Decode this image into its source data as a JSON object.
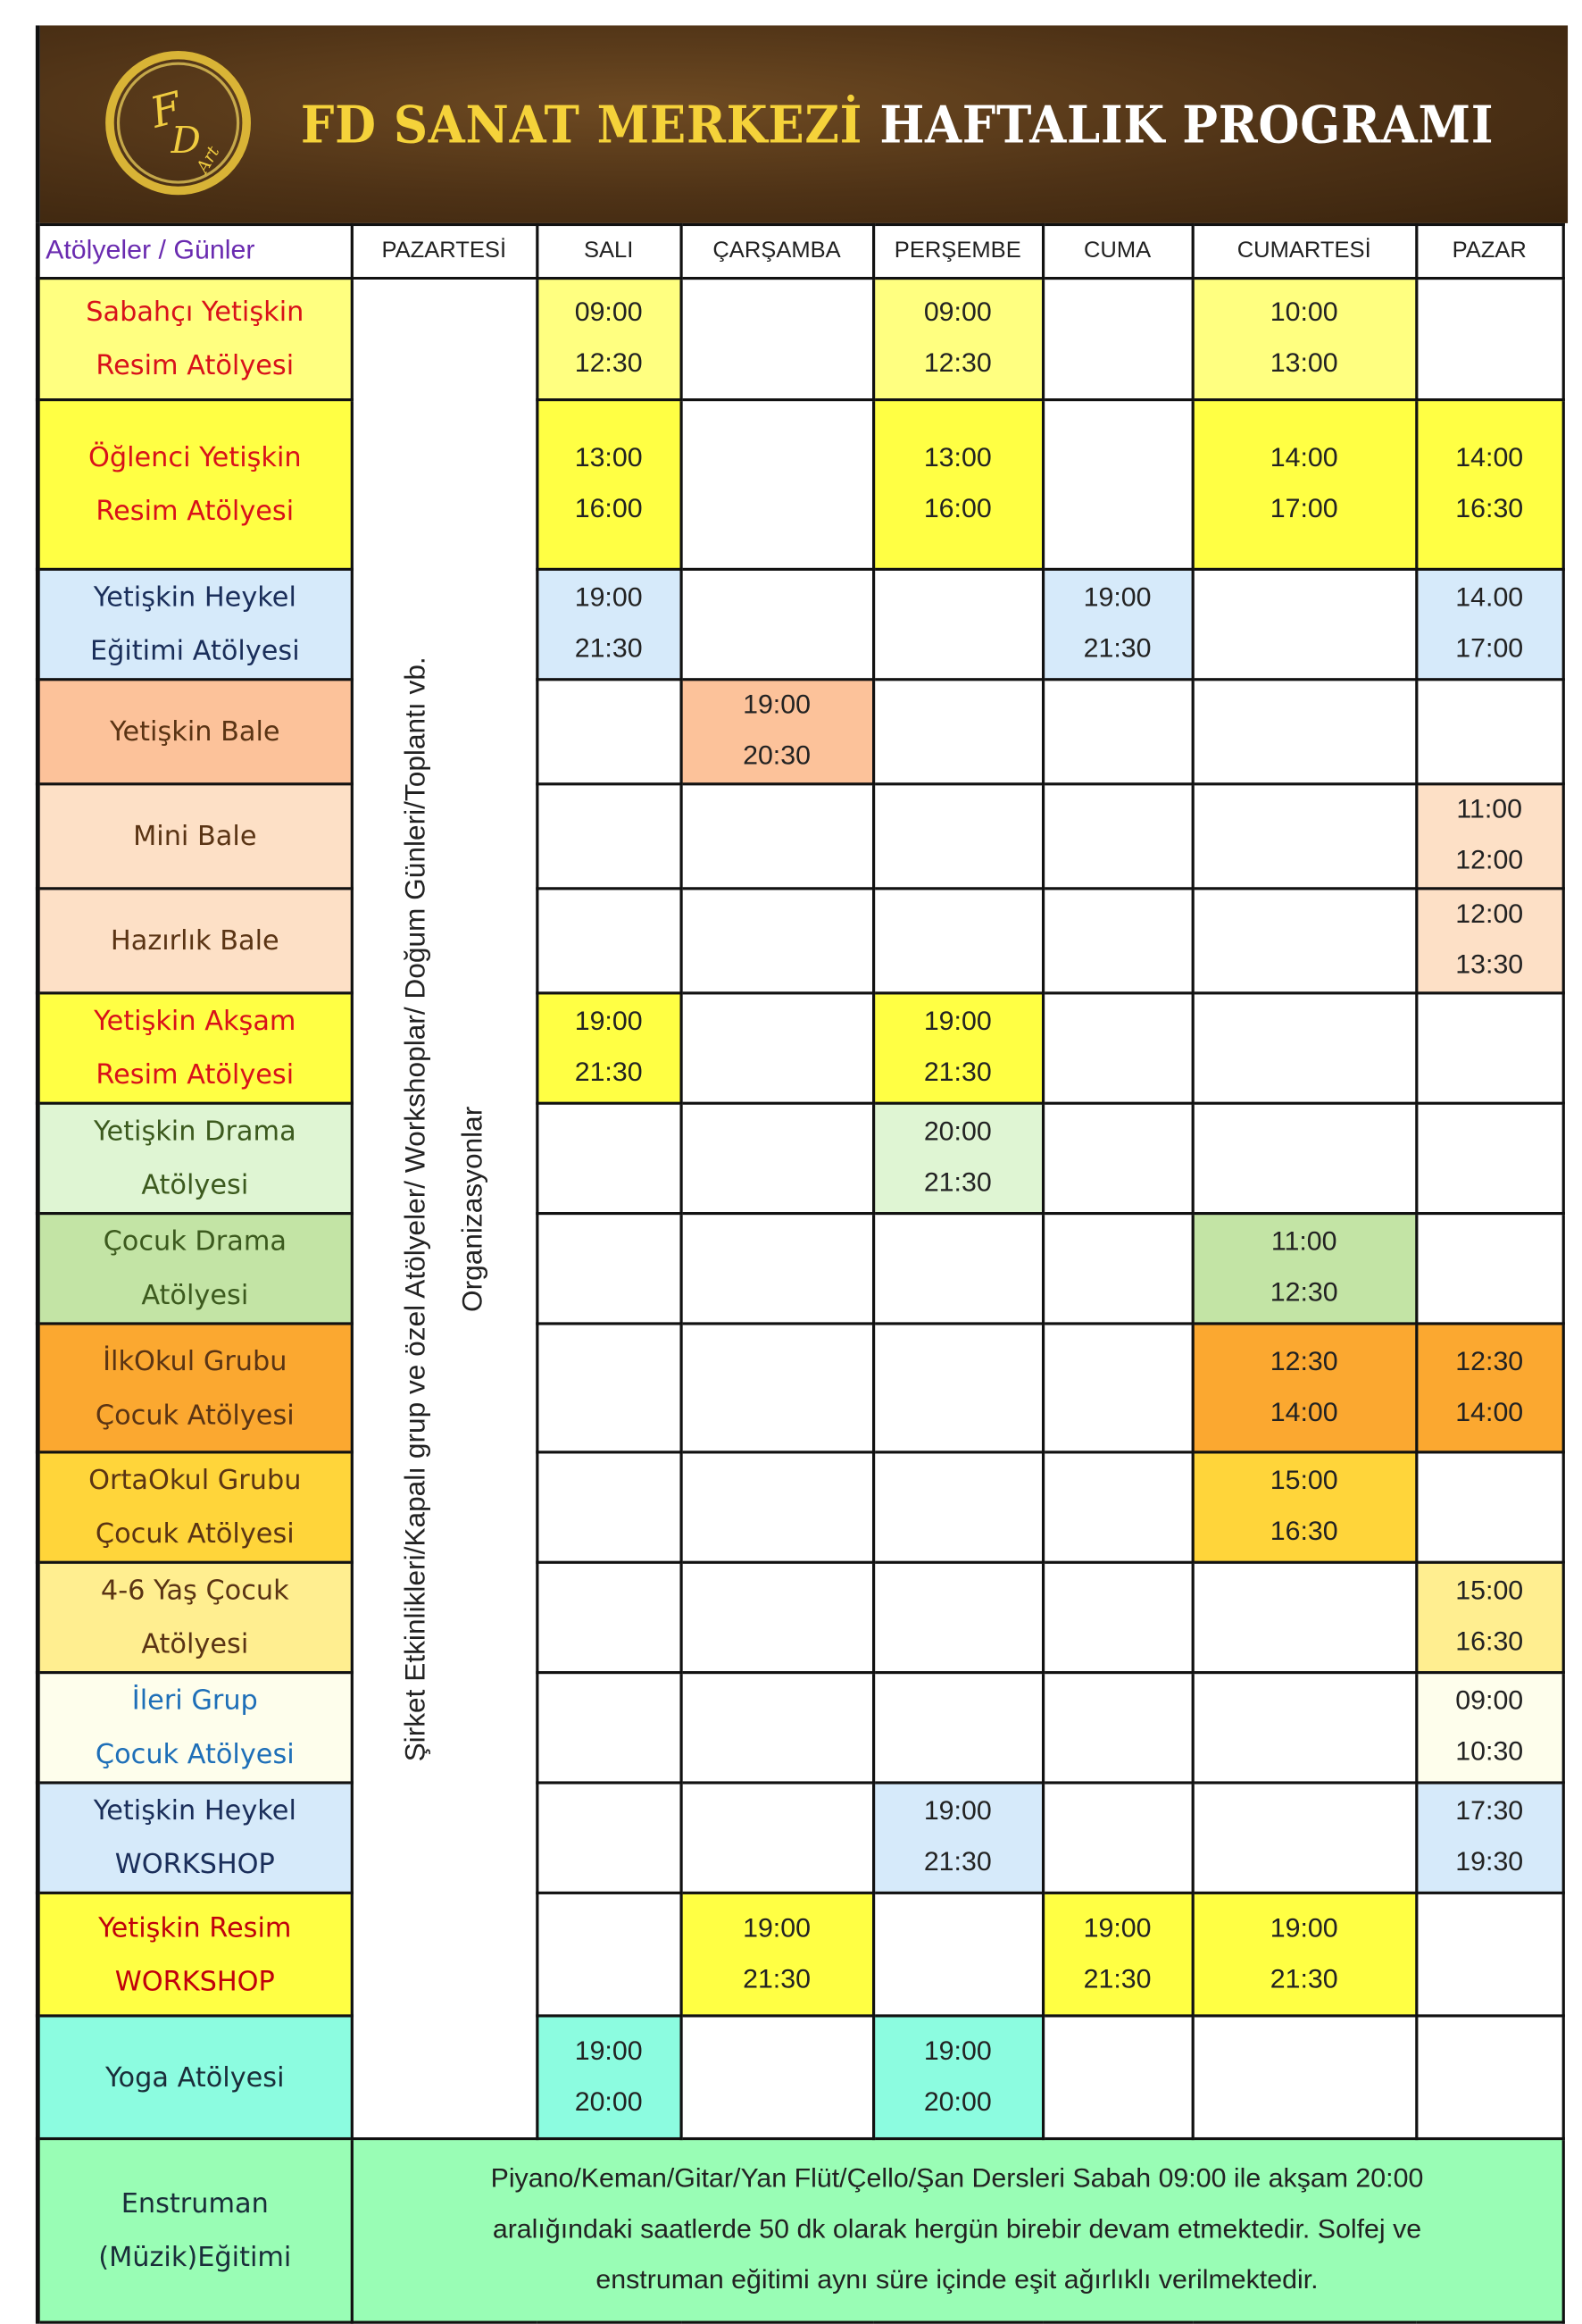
{
  "header": {
    "title_part1": "FD SANAT MERKEZİ",
    "title_part2": "HAFTALIK PROGRAMI",
    "logo_text": "FD Art"
  },
  "table": {
    "corner_label": "Atölyeler  / Günler",
    "days": [
      "PAZARTESİ",
      "SALI",
      "ÇARŞAMBA",
      "PERŞEMBE",
      "CUMA",
      "CUMARTESİ",
      "PAZAR"
    ],
    "monday_note_line1": "Şirket Etkinlikleri/Kapalı grup ve özel Atölyeler/ Workshoplar/ Doğum Günleri/Toplantı vb.",
    "monday_note_line2": "Organizasyonlar",
    "rows": [
      {
        "label1": "Sabahçı Yetişkin",
        "label2": "Resim Atölyesi",
        "color": "#d8111a",
        "bg": "#ffff80",
        "slots": [
          {
            "start": "09:00",
            "end": "12:30"
          },
          null,
          {
            "start": "09:00",
            "end": "12:30"
          },
          null,
          {
            "start": "10:00",
            "end": "13:00"
          },
          null
        ]
      },
      {
        "label1": "Öğlenci Yetişkin",
        "label2": "Resim Atölyesi",
        "color": "#d8111a",
        "bg": "#ffff44",
        "slots": [
          {
            "start": "13:00",
            "end": "16:00"
          },
          null,
          {
            "start": "13:00",
            "end": "16:00"
          },
          null,
          {
            "start": "14:00",
            "end": "17:00"
          },
          {
            "start": "14:00",
            "end": "16:30"
          }
        ]
      },
      {
        "label1": "Yetişkin Heykel",
        "label2": "Eğitimi Atölyesi",
        "color": "#1a2e5a",
        "bg": "#d6eafa",
        "slots": [
          {
            "start": "19:00",
            "end": "21:30"
          },
          null,
          null,
          {
            "start": "19:00",
            "end": "21:30"
          },
          null,
          {
            "start": "14.00",
            "end": "17:00"
          }
        ]
      },
      {
        "label1": "Yetişkin Bale",
        "label2": "",
        "color": "#5a3414",
        "bg": "#fcc29a",
        "slots": [
          null,
          {
            "start": "19:00",
            "end": "20:30"
          },
          null,
          null,
          null,
          null
        ]
      },
      {
        "label1": "Mini Bale",
        "label2": "",
        "color": "#5a3414",
        "bg": "#fde0c6",
        "slots": [
          null,
          null,
          null,
          null,
          null,
          {
            "start": "11:00",
            "end": "12:00"
          }
        ]
      },
      {
        "label1": "Hazırlık Bale",
        "label2": "",
        "color": "#5a3414",
        "bg": "#fde0c6",
        "slots": [
          null,
          null,
          null,
          null,
          null,
          {
            "start": "12:00",
            "end": "13:30"
          }
        ]
      },
      {
        "label1": "Yetişkin Akşam",
        "label2": "Resim Atölyesi",
        "color": "#d8111a",
        "bg": "#ffff44",
        "slots": [
          {
            "start": "19:00",
            "end": "21:30"
          },
          null,
          {
            "start": "19:00",
            "end": "21:30"
          },
          null,
          null,
          null
        ]
      },
      {
        "label1": "Yetişkin Drama",
        "label2": "Atölyesi",
        "color": "#3c5a1e",
        "bg": "#dff5d3",
        "slots": [
          null,
          null,
          {
            "start": "20:00",
            "end": "21:30"
          },
          null,
          null,
          null
        ]
      },
      {
        "label1": "Çocuk Drama",
        "label2": "Atölyesi",
        "color": "#3c5a1e",
        "bg": "#c3e4a5",
        "slots": [
          null,
          null,
          null,
          null,
          {
            "start": "11:00",
            "end": "12:30"
          },
          null
        ]
      },
      {
        "label1": "İlkOkul Grubu",
        "label2": "Çocuk Atölyesi",
        "color": "#5a3414",
        "bg": "#fba830",
        "slots": [
          null,
          null,
          null,
          null,
          {
            "start": "12:30",
            "end": "14:00"
          },
          {
            "start": "12:30",
            "end": "14:00"
          }
        ]
      },
      {
        "label1": "OrtaOkul Grubu",
        "label2": "Çocuk Atölyesi",
        "color": "#5a3414",
        "bg": "#ffd53a",
        "slots": [
          null,
          null,
          null,
          null,
          {
            "start": "15:00",
            "end": "16:30"
          },
          null
        ]
      },
      {
        "label1": "4-6 Yaş Çocuk",
        "label2": "Atölyesi",
        "color": "#5a3414",
        "bg": "#ffee90",
        "slots": [
          null,
          null,
          null,
          null,
          null,
          {
            "start": "15:00",
            "end": "16:30"
          }
        ]
      },
      {
        "label1": "İleri Grup",
        "label2": "Çocuk Atölyesi",
        "color": "#1e6fb8",
        "bg": "#fefeec",
        "slots": [
          null,
          null,
          null,
          null,
          null,
          {
            "start": "09:00",
            "end": "10:30"
          }
        ]
      },
      {
        "label1": "Yetişkin Heykel",
        "label2": "WORKSHOP",
        "color": "#1a2e5a",
        "bg": "#d6eafa",
        "slots": [
          null,
          null,
          {
            "start": "19:00",
            "end": "21:30"
          },
          null,
          null,
          {
            "start": "17:30",
            "end": "19:30"
          }
        ]
      },
      {
        "label1": "Yetişkin Resim",
        "label2": "WORKSHOP",
        "color": "#c0000c",
        "bg": "#ffff44",
        "slots": [
          null,
          {
            "start": "19:00",
            "end": "21:30"
          },
          null,
          {
            "start": "19:00",
            "end": "21:30"
          },
          {
            "start": "19:00",
            "end": "21:30"
          },
          null
        ]
      },
      {
        "label1": "Yoga Atölyesi",
        "label2": "",
        "color": "#1a2e3a",
        "bg": "#8cfce0",
        "slots": [
          {
            "start": "19:00",
            "end": "20:00"
          },
          null,
          {
            "start": "19:00",
            "end": "20:00"
          },
          null,
          null,
          null
        ]
      }
    ],
    "footer": {
      "label1": "Enstruman",
      "label2": "(Müzik)Eğitimi",
      "text_line1": "Piyano/Keman/Gitar/Yan Flüt/Çello/Şan Dersleri Sabah 09:00 ile akşam 20:00",
      "text_line2": "aralığındaki saatlerde 50 dk olarak hergün birebir devam etmektedir. Solfej ve",
      "text_line3": "enstruman eğitimi aynı süre içinde eşit ağırlıklı verilmektedir."
    }
  }
}
